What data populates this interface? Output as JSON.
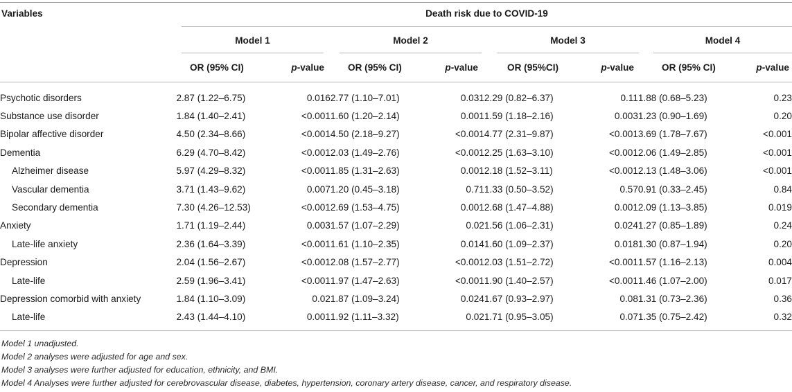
{
  "header": {
    "variables": "Variables",
    "outcome": "Death risk due to COVID-19",
    "models": [
      "Model 1",
      "Model 2",
      "Model 3",
      "Model 4"
    ],
    "or_labels": [
      "OR (95% CI)",
      "OR (95% CI)",
      "OR (95%CI)",
      "OR (95% CI)"
    ],
    "p_prefix": "p",
    "p_suffix": "-value"
  },
  "rows": [
    {
      "label": "Psychotic disorders",
      "sub": false,
      "cells": [
        "2.87 (1.22–6.75)",
        "0.016",
        "2.77 (1.10–7.01)",
        "0.031",
        "2.29 (0.82–6.37)",
        "0.11",
        "1.88 (0.68–5.23)",
        "0.23"
      ]
    },
    {
      "label": "Substance use disorder",
      "sub": false,
      "cells": [
        "1.84 (1.40–2.41)",
        "<0.001",
        "1.60 (1.20–2.14)",
        "0.001",
        "1.59 (1.18–2.16)",
        "0.003",
        "1.23 (0.90–1.69)",
        "0.20"
      ]
    },
    {
      "label": "Bipolar affective disorder",
      "sub": false,
      "cells": [
        "4.50 (2.34–8.66)",
        "<0.001",
        "4.50 (2.18–9.27)",
        "<0.001",
        "4.77 (2.31–9.87)",
        "<0.001",
        "3.69 (1.78–7.67)",
        "<0.001"
      ]
    },
    {
      "label": "Dementia",
      "sub": false,
      "cells": [
        "6.29 (4.70–8.42)",
        "<0.001",
        "2.03 (1.49–2.76)",
        "<0.001",
        "2.25 (1.63–3.10)",
        "<0.001",
        "2.06 (1.49–2.85)",
        "<0.001"
      ]
    },
    {
      "label": "Alzheimer disease",
      "sub": true,
      "cells": [
        "5.97 (4.29–8.32)",
        "<0.001",
        "1.85 (1.31–2.63)",
        "0.001",
        "2.18 (1.52–3.11)",
        "<0.001",
        "2.13 (1.48–3.06)",
        "<0.001"
      ]
    },
    {
      "label": "Vascular dementia",
      "sub": true,
      "cells": [
        "3.71 (1.43–9.62)",
        "0.007",
        "1.20 (0.45–3.18)",
        "0.71",
        "1.33 (0.50–3.52)",
        "0.57",
        "0.91 (0.33–2.45)",
        "0.84"
      ]
    },
    {
      "label": "Secondary dementia",
      "sub": true,
      "cells": [
        "7.30 (4.26–12.53)",
        "<0.001",
        "2.69 (1.53–4.75)",
        "0.001",
        "2.68 (1.47–4.88)",
        "0.001",
        "2.09 (1.13–3.85)",
        "0.019"
      ]
    },
    {
      "label": "Anxiety",
      "sub": false,
      "cells": [
        "1.71 (1.19–2.44)",
        "0.003",
        "1.57 (1.07–2.29)",
        "0.02",
        "1.56 (1.06–2.31)",
        "0.024",
        "1.27 (0.85–1.89)",
        "0.24"
      ]
    },
    {
      "label": "Late-life anxiety",
      "sub": true,
      "cells": [
        "2.36 (1.64–3.39)",
        "<0.001",
        "1.61 (1.10–2.35)",
        "0.014",
        "1.60 (1.09–2.37)",
        "0.018",
        "1.30 (0.87–1.94)",
        "0.20"
      ]
    },
    {
      "label": "Depression",
      "sub": false,
      "cells": [
        "2.04 (1.56–2.67)",
        "<0.001",
        "2.08 (1.57–2.77)",
        "<0.001",
        "2.03 (1.51–2.72)",
        "<0.001",
        "1.57 (1.16–2.13)",
        "0.004"
      ]
    },
    {
      "label": "Late-life",
      "sub": true,
      "cells": [
        "2.59 (1.96–3.41)",
        "<0.001",
        "1.97 (1.47–2.63)",
        "<0.001",
        "1.90 (1.40–2.57)",
        "<0.001",
        "1.46 (1.07–2.00)",
        "0.017"
      ]
    },
    {
      "label": "Depression comorbid with anxiety",
      "sub": false,
      "cells": [
        "1.84 (1.10–3.09)",
        "0.02",
        "1.87 (1.09–3.24)",
        "0.024",
        "1.67 (0.93–2.97)",
        "0.08",
        "1.31 (0.73–2.36)",
        "0.36"
      ]
    },
    {
      "label": "Late-life",
      "sub": true,
      "cells": [
        "2.43 (1.44–4.10)",
        "0.001",
        "1.92 (1.11–3.32)",
        "0.02",
        "1.71 (0.95–3.05)",
        "0.07",
        "1.35 (0.75–2.42)",
        "0.32"
      ]
    }
  ],
  "footnotes": [
    "Model 1 unadjusted.",
    "Model 2 analyses were adjusted for age and sex.",
    "Model 3 analyses were further adjusted for education, ethnicity, and BMI.",
    "Model 4 Analyses were further adjusted for cerebrovascular disease, diabetes, hypertension, coronary artery disease, cancer, and respiratory disease."
  ]
}
